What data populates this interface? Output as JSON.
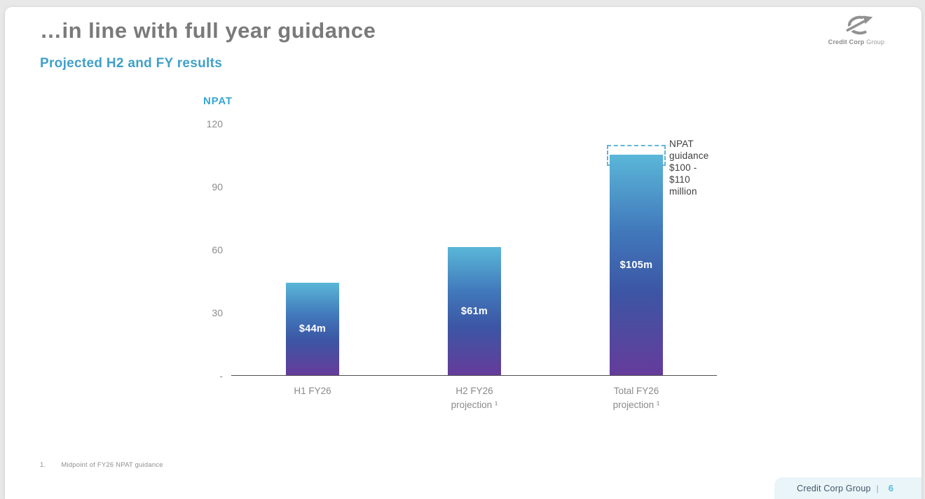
{
  "slide": {
    "title": "…in line with full year guidance",
    "subtitle": "Projected H2 and FY results",
    "footnote": {
      "number": "1.",
      "text": "Midpoint of FY26 NPAT guidance"
    }
  },
  "logo": {
    "company_bold": "Credit Corp",
    "company_light": "Group"
  },
  "footer": {
    "company": "Credit Corp Group",
    "divider": "|",
    "page_number": "6"
  },
  "chart_data": {
    "type": "bar",
    "title": "NPAT",
    "categories": [
      "H1 FY26",
      "H2 FY26 projection¹",
      "Total FY26 projection¹"
    ],
    "category_lines": [
      [
        "H1 FY26"
      ],
      [
        "H2 FY26",
        "projection ¹"
      ],
      [
        "Total FY26",
        "projection ¹"
      ]
    ],
    "values": [
      44,
      61,
      105
    ],
    "bar_labels": [
      "$44m",
      "$61m",
      "$105m"
    ],
    "ylim": [
      0,
      120
    ],
    "yticks": [
      {
        "value": 120,
        "label": "120"
      },
      {
        "value": 90,
        "label": "90"
      },
      {
        "value": 60,
        "label": "60"
      },
      {
        "value": 30,
        "label": "30"
      },
      {
        "value": 0,
        "label": "-"
      }
    ],
    "grid": false,
    "legend": null,
    "guidance": {
      "label_line1": "NPAT guidance",
      "label_line2": "$100 - $110 million",
      "range_low": 100,
      "range_high": 110
    },
    "colors": {
      "bar_gradient_top": "#5ab7d8",
      "bar_gradient_mid": "#3c56a4",
      "bar_gradient_bottom": "#653c9b",
      "guidance_dash": "#62b5d8",
      "accent_blue": "#3fa0c8",
      "title_gray": "#7a7a7a"
    }
  }
}
